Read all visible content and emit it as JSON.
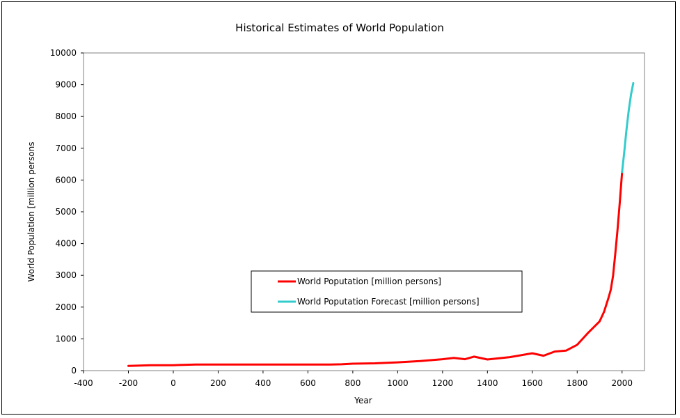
{
  "chart_data": {
    "type": "line",
    "title": "Historical Estimates of World Population",
    "xlabel": "Year",
    "ylabel": "World Population [million persons",
    "xlim": [
      -400,
      2100
    ],
    "ylim": [
      0,
      10000
    ],
    "x_ticks": [
      -400,
      -200,
      0,
      200,
      400,
      600,
      800,
      1000,
      1200,
      1400,
      1600,
      1800,
      2000
    ],
    "y_ticks": [
      0,
      1000,
      2000,
      3000,
      4000,
      5000,
      6000,
      7000,
      8000,
      9000,
      10000
    ],
    "x_tick_labels": [
      "-400",
      "-200",
      "0",
      "200",
      "400",
      "600",
      "800",
      "1000",
      "1200",
      "1400",
      "1600",
      "1800",
      "2000"
    ],
    "y_tick_labels": [
      "0",
      "1000",
      "2000",
      "3000",
      "4000",
      "5000",
      "6000",
      "7000",
      "8000",
      "9000",
      "10000"
    ],
    "grid": false,
    "legend_position": "center",
    "series": [
      {
        "name": "World Poputation [million persons]",
        "color": "#ff0000",
        "x": [
          -200,
          -100,
          0,
          100,
          200,
          300,
          400,
          500,
          600,
          700,
          750,
          800,
          900,
          1000,
          1100,
          1200,
          1250,
          1300,
          1340,
          1400,
          1500,
          1600,
          1650,
          1700,
          1750,
          1800,
          1850,
          1900,
          1920,
          1940,
          1950,
          1960,
          1970,
          1980,
          1990,
          2000
        ],
        "y": [
          150,
          170,
          170,
          190,
          190,
          190,
          190,
          190,
          190,
          190,
          200,
          220,
          230,
          260,
          300,
          360,
          400,
          360,
          440,
          350,
          425,
          545,
          470,
          600,
          629,
          813,
          1200,
          1550,
          1860,
          2300,
          2550,
          3000,
          3700,
          4450,
          5300,
          6250
        ]
      },
      {
        "name": "World Poputation Forecast [million persons]",
        "color": "#33cccc",
        "x": [
          2000,
          2010,
          2020,
          2030,
          2040,
          2050
        ],
        "y": [
          6250,
          6900,
          7600,
          8200,
          8700,
          9050
        ]
      }
    ]
  }
}
